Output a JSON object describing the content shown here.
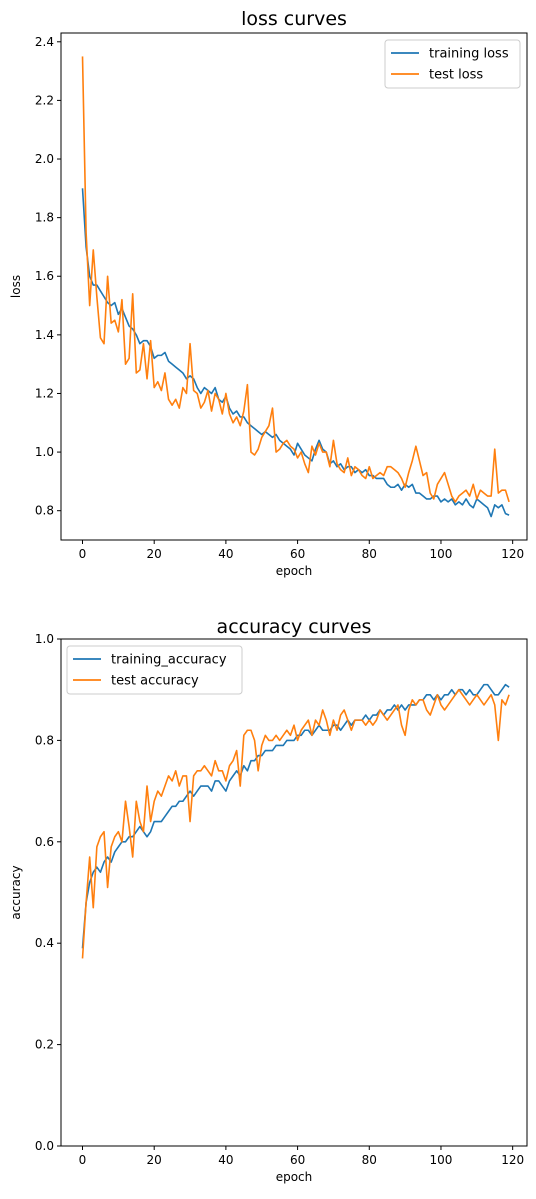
{
  "chart_data": [
    {
      "type": "line",
      "title": "loss curves",
      "xlabel": "epoch",
      "ylabel": "loss",
      "xlim": [
        -6,
        124
      ],
      "ylim": [
        0.7,
        2.43
      ],
      "xticks": [
        0,
        20,
        40,
        60,
        80,
        100,
        120
      ],
      "yticks": [
        0.8,
        1.0,
        1.2,
        1.4,
        1.6,
        1.8,
        2.0,
        2.2,
        2.4
      ],
      "ytick_labels": [
        "0.8",
        "1.0",
        "1.2",
        "1.4",
        "1.6",
        "1.8",
        "2.0",
        "2.2",
        "2.4"
      ],
      "legend": "top-right",
      "grid": false,
      "x": [
        0,
        1,
        2,
        3,
        4,
        5,
        6,
        7,
        8,
        9,
        10,
        11,
        12,
        13,
        14,
        15,
        16,
        17,
        18,
        19,
        20,
        21,
        22,
        23,
        24,
        25,
        26,
        27,
        28,
        29,
        30,
        31,
        32,
        33,
        34,
        35,
        36,
        37,
        38,
        39,
        40,
        41,
        42,
        43,
        44,
        45,
        46,
        47,
        48,
        49,
        50,
        51,
        52,
        53,
        54,
        55,
        56,
        57,
        58,
        59,
        60,
        61,
        62,
        63,
        64,
        65,
        66,
        67,
        68,
        69,
        70,
        71,
        72,
        73,
        74,
        75,
        76,
        77,
        78,
        79,
        80,
        81,
        82,
        83,
        84,
        85,
        86,
        87,
        88,
        89,
        90,
        91,
        92,
        93,
        94,
        95,
        96,
        97,
        98,
        99,
        100,
        101,
        102,
        103,
        104,
        105,
        106,
        107,
        108,
        109,
        110,
        111,
        112,
        113,
        114,
        115,
        116,
        117,
        118,
        119
      ],
      "series": [
        {
          "name": "training loss",
          "color": "#1f77b4",
          "values": [
            1.9,
            1.7,
            1.6,
            1.57,
            1.57,
            1.55,
            1.53,
            1.51,
            1.5,
            1.51,
            1.47,
            1.49,
            1.46,
            1.43,
            1.42,
            1.4,
            1.37,
            1.38,
            1.38,
            1.36,
            1.32,
            1.33,
            1.33,
            1.34,
            1.31,
            1.3,
            1.29,
            1.28,
            1.27,
            1.25,
            1.26,
            1.25,
            1.22,
            1.2,
            1.22,
            1.21,
            1.2,
            1.22,
            1.18,
            1.17,
            1.19,
            1.15,
            1.13,
            1.14,
            1.12,
            1.12,
            1.1,
            1.09,
            1.08,
            1.07,
            1.06,
            1.07,
            1.06,
            1.05,
            1.06,
            1.04,
            1.03,
            1.02,
            1.01,
            0.99,
            1.03,
            1.01,
            0.99,
            0.98,
            0.97,
            1.01,
            1.04,
            1.01,
            1.0,
            0.96,
            0.97,
            0.95,
            0.96,
            0.94,
            0.95,
            0.95,
            0.93,
            0.94,
            0.93,
            0.94,
            0.92,
            0.92,
            0.91,
            0.91,
            0.91,
            0.89,
            0.88,
            0.88,
            0.89,
            0.87,
            0.89,
            0.88,
            0.89,
            0.86,
            0.86,
            0.85,
            0.84,
            0.84,
            0.85,
            0.85,
            0.83,
            0.84,
            0.83,
            0.84,
            0.82,
            0.83,
            0.82,
            0.84,
            0.82,
            0.81,
            0.84,
            0.83,
            0.82,
            0.81,
            0.78,
            0.82,
            0.81,
            0.82,
            0.79,
            0.785
          ]
        },
        {
          "name": "test loss",
          "color": "#ff7f0e",
          "values": [
            2.35,
            1.75,
            1.5,
            1.69,
            1.53,
            1.39,
            1.37,
            1.6,
            1.44,
            1.45,
            1.41,
            1.52,
            1.3,
            1.32,
            1.54,
            1.27,
            1.28,
            1.37,
            1.25,
            1.38,
            1.22,
            1.24,
            1.21,
            1.27,
            1.18,
            1.16,
            1.18,
            1.15,
            1.22,
            1.2,
            1.37,
            1.21,
            1.2,
            1.15,
            1.17,
            1.21,
            1.14,
            1.2,
            1.18,
            1.13,
            1.2,
            1.13,
            1.1,
            1.12,
            1.09,
            1.14,
            1.23,
            1.0,
            0.99,
            1.01,
            1.05,
            1.07,
            1.09,
            1.15,
            1.0,
            1.01,
            1.03,
            1.04,
            1.02,
            1.01,
            0.98,
            1.0,
            0.96,
            0.93,
            1.02,
            0.99,
            1.03,
            1.0,
            1.0,
            0.95,
            1.04,
            0.96,
            0.94,
            0.93,
            0.98,
            0.92,
            0.95,
            0.94,
            0.92,
            0.91,
            0.95,
            0.91,
            0.92,
            0.93,
            0.92,
            0.95,
            0.95,
            0.94,
            0.93,
            0.91,
            0.88,
            0.93,
            0.97,
            1.02,
            0.97,
            0.92,
            0.93,
            0.86,
            0.84,
            0.89,
            0.91,
            0.93,
            0.89,
            0.85,
            0.83,
            0.85,
            0.86,
            0.87,
            0.85,
            0.89,
            0.84,
            0.87,
            0.86,
            0.85,
            0.85,
            1.01,
            0.86,
            0.87,
            0.87,
            0.83
          ]
        }
      ]
    },
    {
      "type": "line",
      "title": "accuracy curves",
      "xlabel": "epoch",
      "ylabel": "accuracy",
      "xlim": [
        -6,
        124
      ],
      "ylim": [
        0.0,
        1.0
      ],
      "xticks": [
        0,
        20,
        40,
        60,
        80,
        100,
        120
      ],
      "yticks": [
        0.0,
        0.2,
        0.4,
        0.6,
        0.8,
        1.0
      ],
      "ytick_labels": [
        "0.0",
        "0.2",
        "0.4",
        "0.6",
        "0.8",
        "1.0"
      ],
      "legend": "top-left",
      "grid": false,
      "x": [
        0,
        1,
        2,
        3,
        4,
        5,
        6,
        7,
        8,
        9,
        10,
        11,
        12,
        13,
        14,
        15,
        16,
        17,
        18,
        19,
        20,
        21,
        22,
        23,
        24,
        25,
        26,
        27,
        28,
        29,
        30,
        31,
        32,
        33,
        34,
        35,
        36,
        37,
        38,
        39,
        40,
        41,
        42,
        43,
        44,
        45,
        46,
        47,
        48,
        49,
        50,
        51,
        52,
        53,
        54,
        55,
        56,
        57,
        58,
        59,
        60,
        61,
        62,
        63,
        64,
        65,
        66,
        67,
        68,
        69,
        70,
        71,
        72,
        73,
        74,
        75,
        76,
        77,
        78,
        79,
        80,
        81,
        82,
        83,
        84,
        85,
        86,
        87,
        88,
        89,
        90,
        91,
        92,
        93,
        94,
        95,
        96,
        97,
        98,
        99,
        100,
        101,
        102,
        103,
        104,
        105,
        106,
        107,
        108,
        109,
        110,
        111,
        112,
        113,
        114,
        115,
        116,
        117,
        118,
        119
      ],
      "series": [
        {
          "name": "training_accuracy",
          "color": "#1f77b4",
          "values": [
            0.39,
            0.48,
            0.52,
            0.54,
            0.55,
            0.54,
            0.56,
            0.57,
            0.56,
            0.58,
            0.59,
            0.6,
            0.6,
            0.61,
            0.61,
            0.62,
            0.63,
            0.62,
            0.61,
            0.62,
            0.64,
            0.64,
            0.64,
            0.65,
            0.66,
            0.67,
            0.67,
            0.68,
            0.68,
            0.69,
            0.7,
            0.69,
            0.7,
            0.71,
            0.71,
            0.71,
            0.7,
            0.72,
            0.72,
            0.71,
            0.7,
            0.72,
            0.73,
            0.74,
            0.73,
            0.75,
            0.74,
            0.76,
            0.76,
            0.77,
            0.77,
            0.78,
            0.78,
            0.78,
            0.79,
            0.79,
            0.79,
            0.8,
            0.8,
            0.8,
            0.81,
            0.81,
            0.82,
            0.82,
            0.81,
            0.82,
            0.83,
            0.82,
            0.82,
            0.82,
            0.83,
            0.83,
            0.82,
            0.83,
            0.84,
            0.83,
            0.84,
            0.84,
            0.84,
            0.85,
            0.84,
            0.85,
            0.85,
            0.86,
            0.85,
            0.86,
            0.86,
            0.87,
            0.86,
            0.87,
            0.86,
            0.87,
            0.87,
            0.87,
            0.88,
            0.88,
            0.89,
            0.89,
            0.88,
            0.89,
            0.88,
            0.89,
            0.89,
            0.9,
            0.89,
            0.9,
            0.9,
            0.89,
            0.9,
            0.89,
            0.89,
            0.9,
            0.91,
            0.91,
            0.9,
            0.89,
            0.89,
            0.9,
            0.91,
            0.905
          ]
        },
        {
          "name": "test accuracy",
          "color": "#ff7f0e",
          "values": [
            0.37,
            0.48,
            0.57,
            0.47,
            0.59,
            0.61,
            0.62,
            0.51,
            0.59,
            0.61,
            0.62,
            0.6,
            0.68,
            0.63,
            0.57,
            0.68,
            0.64,
            0.62,
            0.71,
            0.64,
            0.68,
            0.7,
            0.69,
            0.71,
            0.73,
            0.72,
            0.74,
            0.71,
            0.73,
            0.73,
            0.64,
            0.73,
            0.74,
            0.74,
            0.75,
            0.74,
            0.73,
            0.76,
            0.74,
            0.74,
            0.72,
            0.75,
            0.76,
            0.78,
            0.71,
            0.81,
            0.82,
            0.82,
            0.8,
            0.74,
            0.79,
            0.81,
            0.8,
            0.8,
            0.81,
            0.8,
            0.81,
            0.82,
            0.81,
            0.83,
            0.8,
            0.82,
            0.83,
            0.84,
            0.81,
            0.84,
            0.83,
            0.86,
            0.84,
            0.81,
            0.84,
            0.82,
            0.85,
            0.86,
            0.84,
            0.82,
            0.84,
            0.84,
            0.84,
            0.83,
            0.84,
            0.83,
            0.84,
            0.86,
            0.85,
            0.84,
            0.85,
            0.86,
            0.87,
            0.83,
            0.81,
            0.86,
            0.88,
            0.87,
            0.88,
            0.88,
            0.86,
            0.85,
            0.87,
            0.89,
            0.87,
            0.86,
            0.87,
            0.88,
            0.89,
            0.9,
            0.89,
            0.88,
            0.87,
            0.88,
            0.89,
            0.88,
            0.87,
            0.88,
            0.89,
            0.87,
            0.8,
            0.88,
            0.87,
            0.89
          ]
        }
      ]
    }
  ]
}
